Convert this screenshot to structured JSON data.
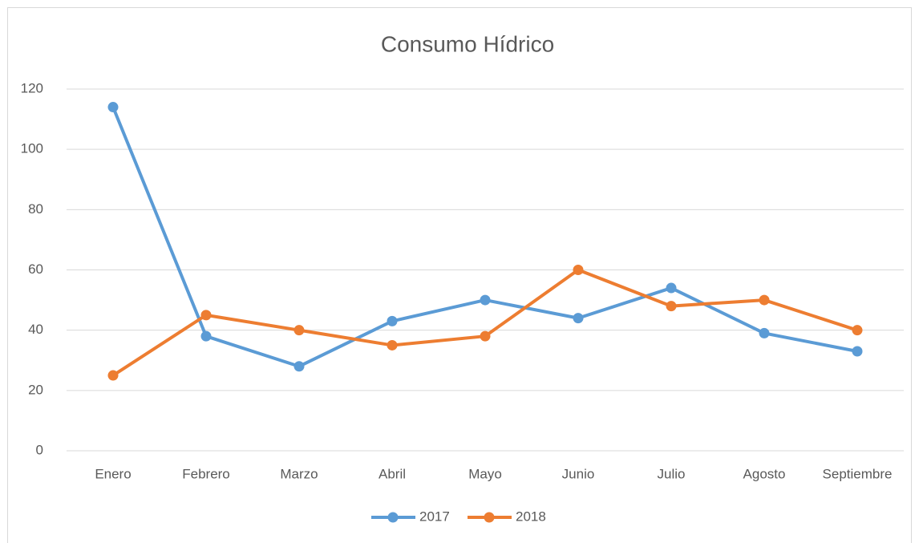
{
  "chart_data": {
    "type": "line",
    "title": "Consumo Hídrico",
    "categories": [
      "Enero",
      "Febrero",
      "Marzo",
      "Abril",
      "Mayo",
      "Junio",
      "Julio",
      "Agosto",
      "Septiembre"
    ],
    "series": [
      {
        "name": "2017",
        "color": "#5b9bd5",
        "values": [
          114,
          38,
          28,
          43,
          50,
          44,
          54,
          39,
          33
        ]
      },
      {
        "name": "2018",
        "color": "#ed7d31",
        "values": [
          25,
          45,
          40,
          35,
          38,
          60,
          48,
          50,
          40
        ]
      }
    ],
    "ylim": [
      0,
      120
    ],
    "yticks": [
      0,
      20,
      40,
      60,
      80,
      100,
      120
    ],
    "grid": true,
    "legend": "bottom"
  }
}
